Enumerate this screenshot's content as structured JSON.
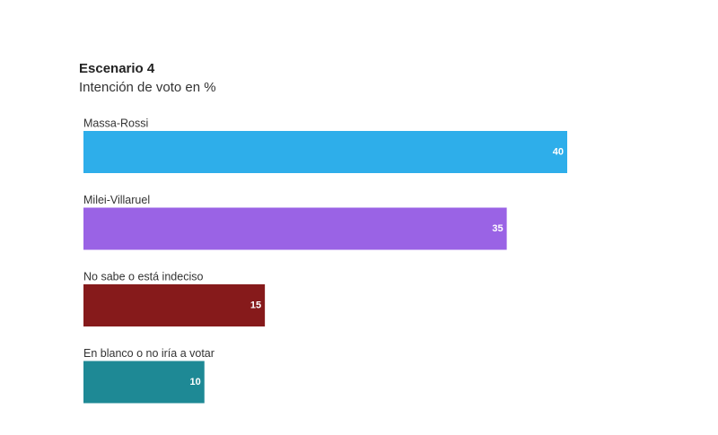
{
  "chart_data": {
    "type": "bar",
    "orientation": "horizontal",
    "title": "Escenario 4",
    "subtitle": "Intención de voto en %",
    "categories": [
      "Massa-Rossi",
      "Milei-Villaruel",
      "No sabe o está indeciso",
      "En blanco o no iría a votar"
    ],
    "values": [
      40,
      35,
      15,
      10
    ],
    "colors": [
      "#2eaeea",
      "#9a63e5",
      "#861a1b",
      "#1e8995"
    ]
  }
}
